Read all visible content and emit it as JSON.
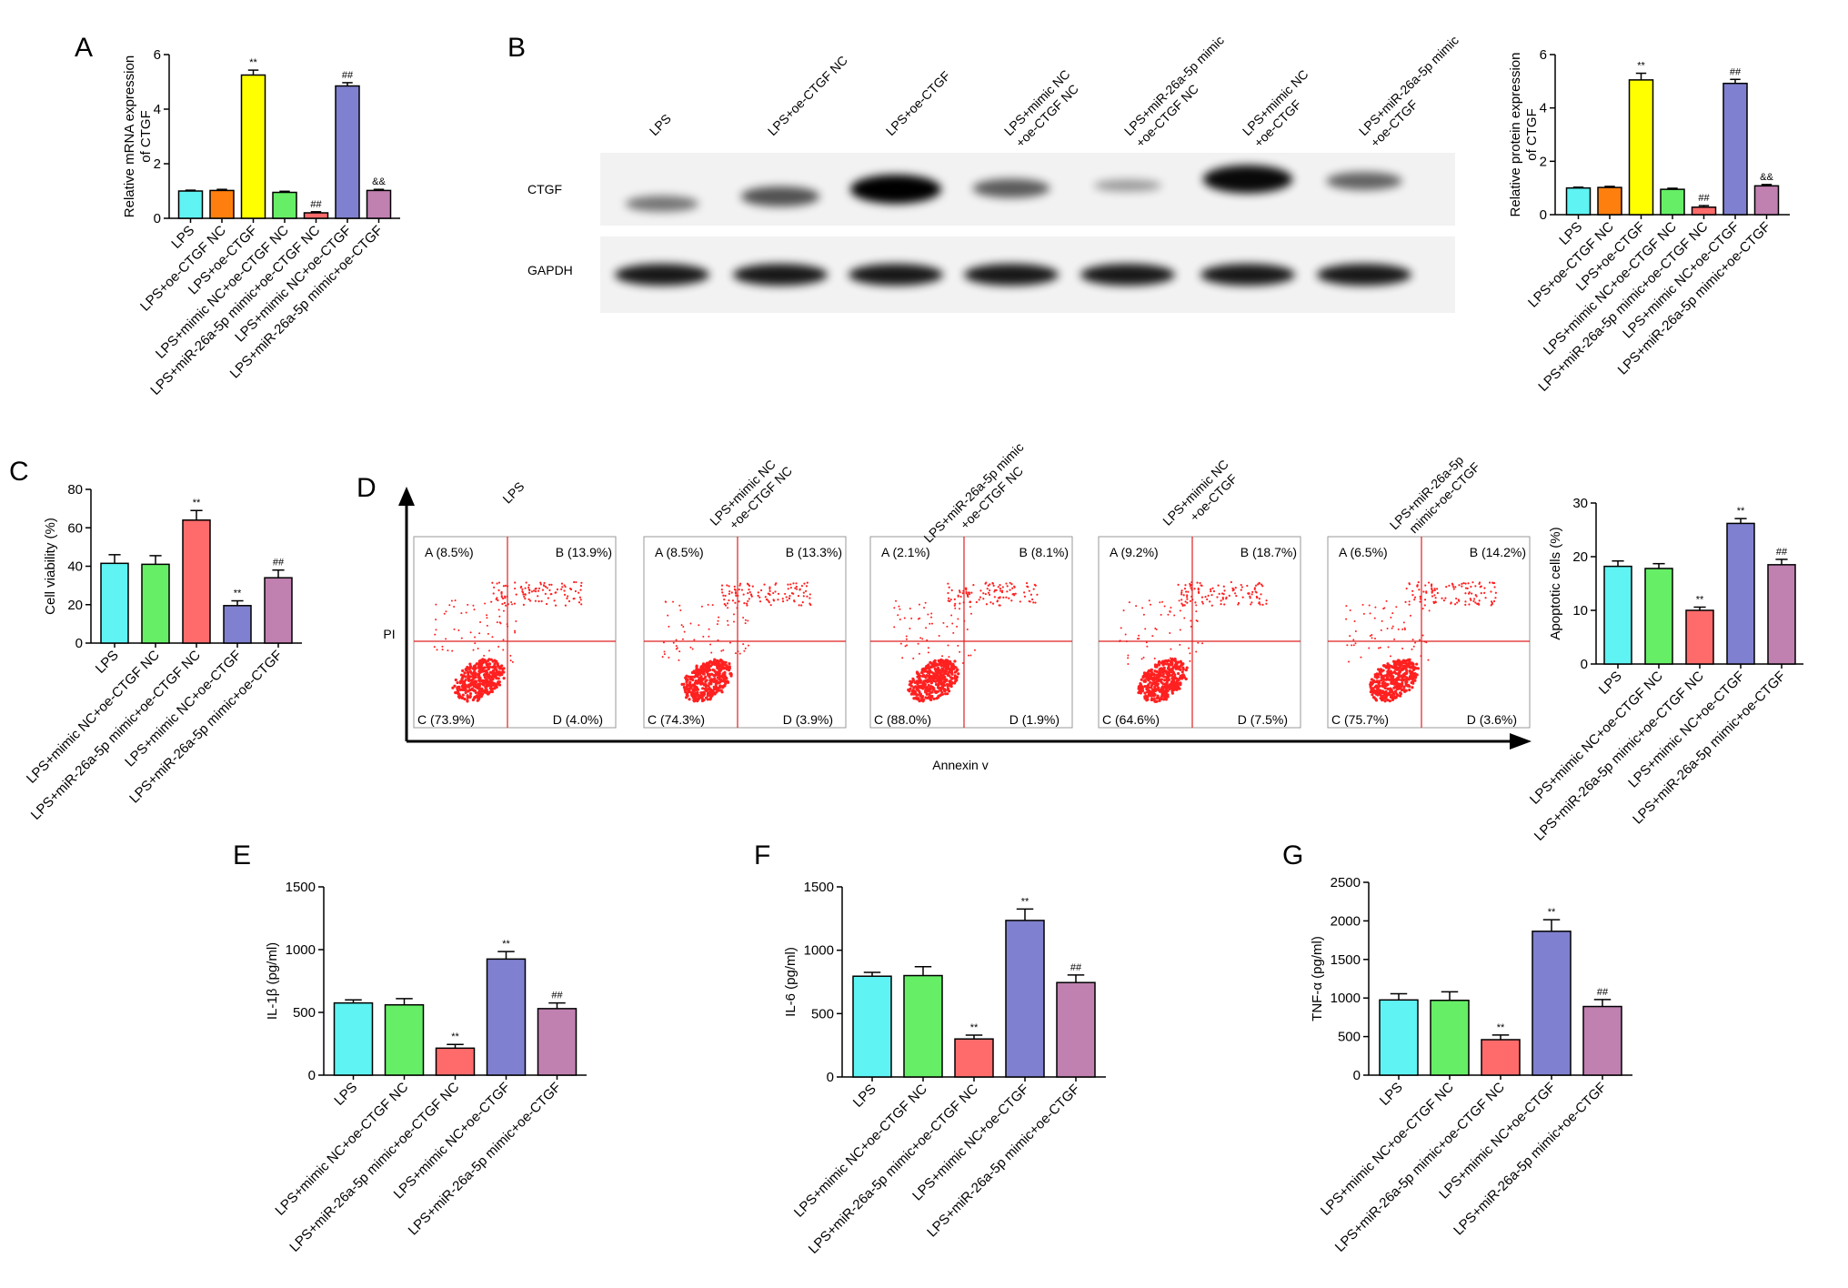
{
  "panels": {
    "A": "A",
    "B": "B",
    "C": "C",
    "D": "D",
    "E": "E",
    "F": "F",
    "G": "G"
  },
  "colors": {
    "LPS": "#5ff3f3",
    "LPS+oe-CTGF NC": "#ff7f0e",
    "LPS+oe-CTGF": "#ffff00",
    "LPS+mimic NC+oe-CTGF NC": "#66ee66",
    "LPS+miR-26a-5p mimic+oe-CTGF NC": "#ff6b6b",
    "LPS+mimic NC+oe-CTGF": "#8080d0",
    "LPS+miR-26a-5p mimic+oe-CTGF": "#c080b0",
    "quadrant_lines": "#e02020",
    "dots": "#ff2020"
  },
  "western_blot": {
    "lane_labels": [
      "LPS",
      "LPS+oe-CTGF NC",
      "LPS+oe-CTGF",
      "LPS+mimic NC\n+oe-CTGF NC",
      "LPS+miR-26a-5p mimic\n+oe-CTGF NC",
      "LPS+mimic NC\n+oe-CTGF",
      "LPS+miR-26a-5p mimic\n+oe-CTGF"
    ],
    "row_labels": [
      "CTGF",
      "GAPDH"
    ],
    "ctgf_band_intensity": [
      0.35,
      0.55,
      1.0,
      0.5,
      0.15,
      0.95,
      0.45
    ],
    "gapdh_band_intensity": [
      0.9,
      0.9,
      0.9,
      0.9,
      0.9,
      0.9,
      0.9
    ]
  },
  "flow": {
    "ylabel": "PI",
    "xlabel": "Annexin v",
    "samples": [
      {
        "title": "LPS",
        "A": "A (8.5%)",
        "B": "B (13.9%)",
        "C": "C (73.9%)",
        "D": "D (4.0%)"
      },
      {
        "title": "LPS+mimic NC\n+oe-CTGF NC",
        "A": "A (8.5%)",
        "B": "B (13.3%)",
        "C": "C (74.3%)",
        "D": "D (3.9%)"
      },
      {
        "title": "LPS+miR-26a-5p mimic\n+oe-CTGF NC",
        "A": "A (2.1%)",
        "B": "B (8.1%)",
        "C": "C (88.0%)",
        "D": "D (1.9%)"
      },
      {
        "title": "LPS+mimic NC\n+oe-CTGF",
        "A": "A (9.2%)",
        "B": "B (18.7%)",
        "C": "C (64.6%)",
        "D": "D (7.5%)"
      },
      {
        "title": "LPS+miR-26a-5p\nmimic+oe-CTGF",
        "A": "A (6.5%)",
        "B": "B (14.2%)",
        "C": "C (75.7%)",
        "D": "D (3.6%)"
      }
    ]
  },
  "chart_data": [
    {
      "panel": "A",
      "type": "bar",
      "ylabel": "Relative mRNA expression\nof CTGF",
      "ylim": [
        0,
        6
      ],
      "yticks": [
        0,
        2,
        4,
        6
      ],
      "categories": [
        "LPS",
        "LPS+oe-CTGF NC",
        "LPS+oe-CTGF",
        "LPS+mimic NC+oe-CTGF NC",
        "LPS+miR-26a-5p mimic+oe-CTGF NC",
        "LPS+mimic NC+oe-CTGF",
        "LPS+miR-26a-5p mimic+oe-CTGF"
      ],
      "values": [
        1.0,
        1.02,
        5.25,
        0.95,
        0.2,
        4.85,
        1.02
      ],
      "errors": [
        0.03,
        0.04,
        0.18,
        0.04,
        0.04,
        0.12,
        0.04
      ],
      "significance": [
        "",
        "",
        "**",
        "",
        "##",
        "##",
        "&&"
      ]
    },
    {
      "panel": "B",
      "type": "bar",
      "ylabel": "Relative protein expression\nof CTGF",
      "ylim": [
        0,
        6
      ],
      "yticks": [
        0,
        2,
        4,
        6
      ],
      "categories": [
        "LPS",
        "LPS+oe-CTGF NC",
        "LPS+oe-CTGF",
        "LPS+mimic NC+oe-CTGF NC",
        "LPS+miR-26a-5p mimic+oe-CTGF NC",
        "LPS+mimic NC+oe-CTGF",
        "LPS+miR-26a-5p mimic+oe-CTGF"
      ],
      "values": [
        1.0,
        1.02,
        5.05,
        0.95,
        0.28,
        4.92,
        1.08
      ],
      "errors": [
        0.03,
        0.04,
        0.25,
        0.04,
        0.06,
        0.15,
        0.05
      ],
      "significance": [
        "",
        "",
        "**",
        "",
        "##",
        "##",
        "&&"
      ]
    },
    {
      "panel": "C",
      "type": "bar",
      "ylabel": "Cell viability (%)",
      "ylim": [
        0,
        80
      ],
      "yticks": [
        0,
        20,
        40,
        60,
        80
      ],
      "categories": [
        "LPS",
        "LPS+mimic NC+oe-CTGF NC",
        "LPS+miR-26a-5p mimic+oe-CTGF NC",
        "LPS+mimic NC+oe-CTGF",
        "LPS+miR-26a-5p mimic+oe-CTGF"
      ],
      "values": [
        41.5,
        41.0,
        64.0,
        19.5,
        34.0
      ],
      "errors": [
        4.5,
        4.5,
        5.0,
        2.5,
        4.0
      ],
      "significance": [
        "",
        "",
        "**",
        "**",
        "##"
      ]
    },
    {
      "panel": "D",
      "type": "bar",
      "ylabel": "Apoptotic cells (%)",
      "ylim": [
        0,
        30
      ],
      "yticks": [
        0,
        10,
        20,
        30
      ],
      "categories": [
        "LPS",
        "LPS+mimic NC+oe-CTGF NC",
        "LPS+miR-26a-5p mimic+oe-CTGF NC",
        "LPS+mimic NC+oe-CTGF",
        "LPS+miR-26a-5p mimic+oe-CTGF"
      ],
      "values": [
        18.2,
        17.8,
        10.0,
        26.2,
        18.5
      ],
      "errors": [
        1.0,
        0.9,
        0.6,
        0.9,
        1.0
      ],
      "significance": [
        "",
        "",
        "**",
        "**",
        "##"
      ]
    },
    {
      "panel": "E",
      "type": "bar",
      "ylabel": "IL-1β (pg/ml)",
      "ylim": [
        0,
        1500
      ],
      "yticks": [
        0,
        500,
        1000,
        1500
      ],
      "categories": [
        "LPS",
        "LPS+mimic NC+oe-CTGF NC",
        "LPS+miR-26a-5p mimic+oe-CTGF NC",
        "LPS+mimic NC+oe-CTGF",
        "LPS+miR-26a-5p mimic+oe-CTGF"
      ],
      "values": [
        575,
        560,
        215,
        925,
        530
      ],
      "errors": [
        25,
        50,
        30,
        60,
        45
      ],
      "significance": [
        "",
        "",
        "**",
        "**",
        "##"
      ]
    },
    {
      "panel": "F",
      "type": "bar",
      "ylabel": "IL-6 (pg/ml)",
      "ylim": [
        0,
        1500
      ],
      "yticks": [
        0,
        500,
        1000,
        1500
      ],
      "categories": [
        "LPS",
        "LPS+mimic NC+oe-CTGF NC",
        "LPS+miR-26a-5p mimic+oe-CTGF NC",
        "LPS+mimic NC+oe-CTGF",
        "LPS+miR-26a-5p mimic+oe-CTGF"
      ],
      "values": [
        795,
        800,
        300,
        1235,
        745
      ],
      "errors": [
        30,
        70,
        30,
        90,
        60
      ],
      "significance": [
        "",
        "",
        "**",
        "**",
        "##"
      ]
    },
    {
      "panel": "G",
      "type": "bar",
      "ylabel": "TNF-α (pg/ml)",
      "ylim": [
        0,
        2500
      ],
      "yticks": [
        0,
        500,
        1000,
        1500,
        2000,
        2500
      ],
      "categories": [
        "LPS",
        "LPS+mimic NC+oe-CTGF NC",
        "LPS+miR-26a-5p mimic+oe-CTGF NC",
        "LPS+mimic NC+oe-CTGF",
        "LPS+miR-26a-5p mimic+oe-CTGF"
      ],
      "values": [
        975,
        970,
        460,
        1865,
        890
      ],
      "errors": [
        80,
        110,
        60,
        150,
        90
      ],
      "significance": [
        "",
        "",
        "**",
        "**",
        "##"
      ]
    }
  ]
}
